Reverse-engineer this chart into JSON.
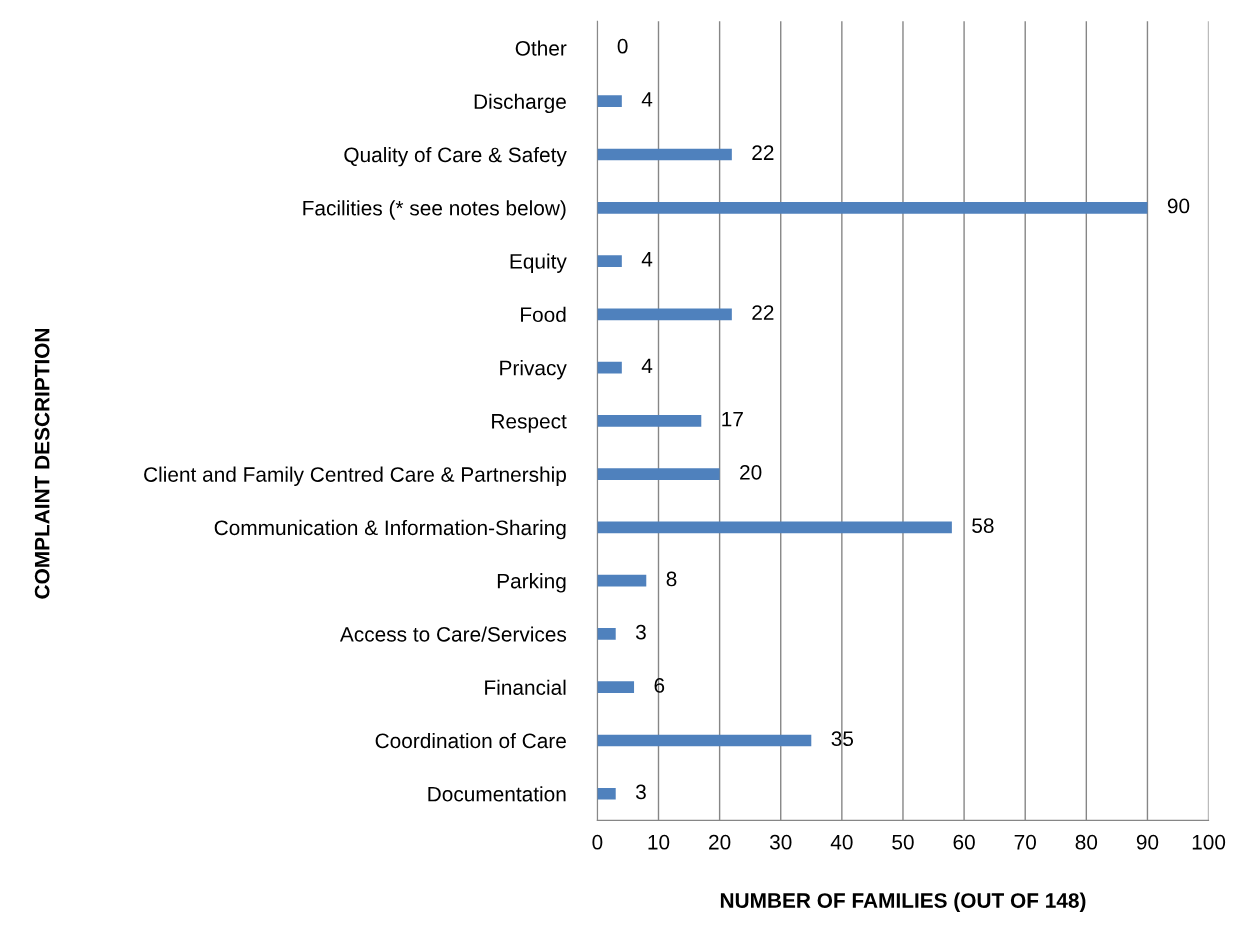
{
  "chart_data": {
    "type": "bar",
    "orientation": "horizontal",
    "xlabel": "NUMBER OF FAMILIES (OUT OF 148)",
    "ylabel": "COMPLAINT DESCRIPTION",
    "categories": [
      "Other",
      "Discharge",
      "Quality of Care & Safety",
      "Facilities (* see notes below)",
      "Equity",
      "Food",
      "Privacy",
      "Respect",
      "Client and Family Centred Care & Partnership",
      "Communication & Information-Sharing",
      "Parking",
      "Access to Care/Services",
      "Financial",
      "Coordination of Care",
      "Documentation"
    ],
    "values": [
      0,
      4,
      22,
      90,
      4,
      22,
      4,
      17,
      20,
      58,
      8,
      3,
      6,
      35,
      3
    ],
    "color": "#4f81bd",
    "xlim": [
      0,
      100
    ],
    "xticks": [
      0,
      10,
      20,
      30,
      40,
      50,
      60,
      70,
      80,
      90,
      100
    ],
    "grid": "x",
    "data_labels": true
  }
}
